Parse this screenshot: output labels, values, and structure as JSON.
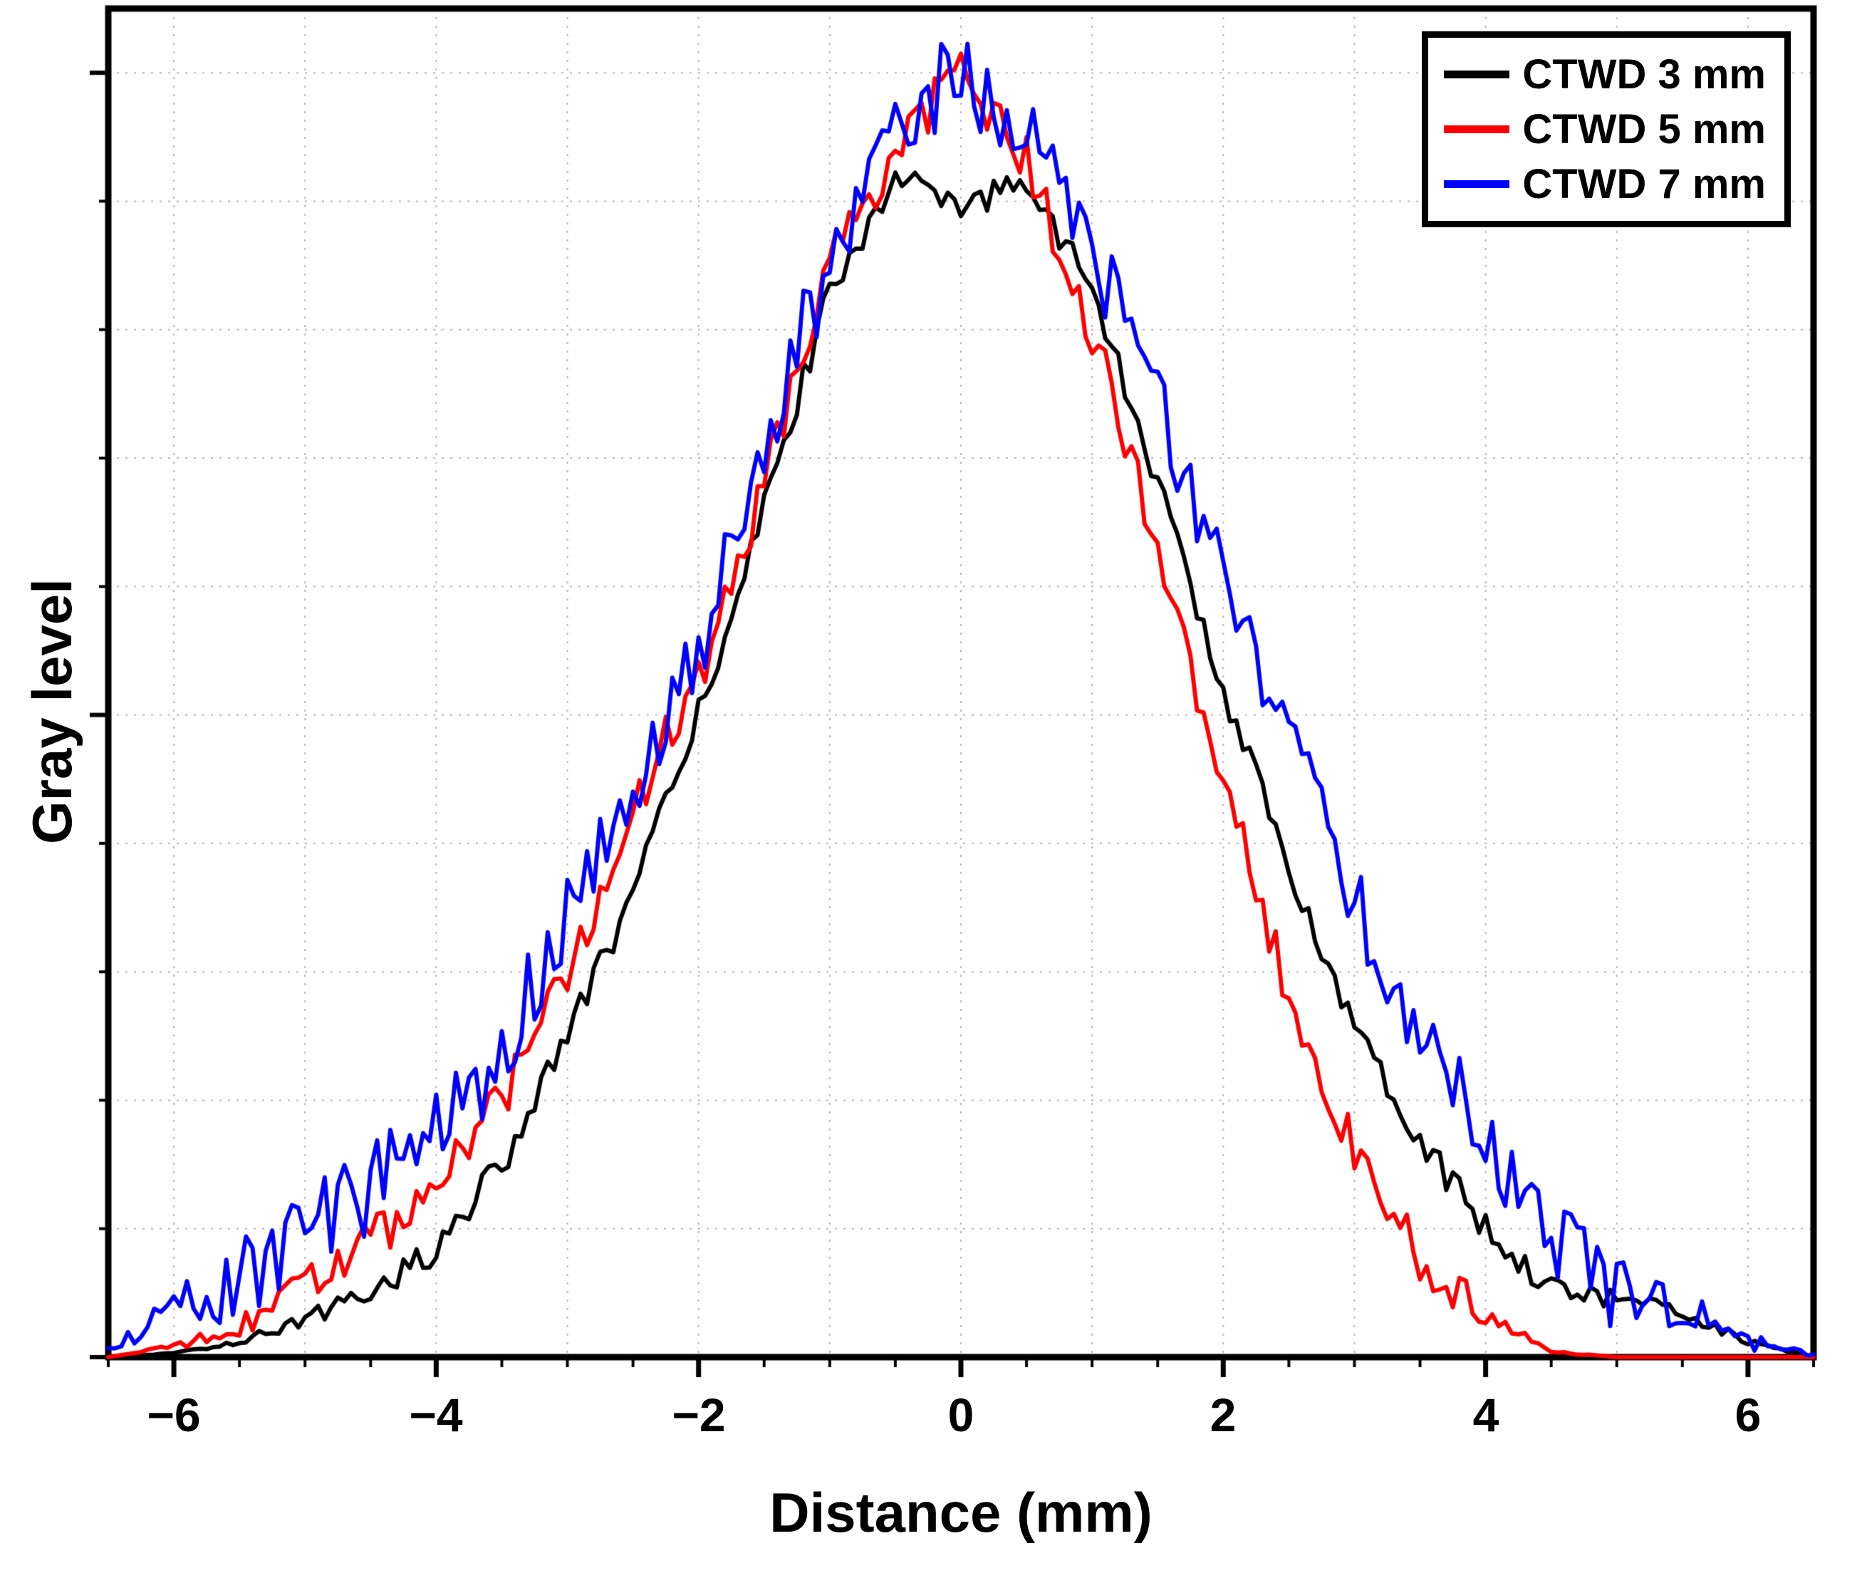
{
  "chart_data": {
    "type": "line",
    "title": "",
    "xlabel": "Distance (mm)",
    "ylabel": "Gray level",
    "xlim": [
      -6.5,
      6.5
    ],
    "ylim": [
      0,
      1.05
    ],
    "x_major_ticks": [
      -6,
      -4,
      -2,
      0,
      2,
      4,
      6
    ],
    "x_tick_labels": [
      "−6",
      "−4",
      "−2",
      "0",
      "2",
      "4",
      "6"
    ],
    "x_minor_step": 0.5,
    "grid": {
      "x_step": 1,
      "y_step": 0.1,
      "style": "dashed",
      "color": "#b5b5b5"
    },
    "legend_position": "top-right",
    "x": [
      -7,
      -6.5,
      -6,
      -5.5,
      -5,
      -4.5,
      -4,
      -3.5,
      -3,
      -2.5,
      -2,
      -1.5,
      -1,
      -0.5,
      0,
      0.5,
      1,
      1.5,
      2,
      2.5,
      3,
      3.5,
      4,
      4.5,
      5,
      5.5,
      6,
      6.5,
      7
    ],
    "series": [
      {
        "name": "CTWD 3 mm",
        "color": "#000000",
        "noise": 0.012,
        "values": [
          0,
          0,
          0.003,
          0.012,
          0.03,
          0.05,
          0.085,
          0.15,
          0.25,
          0.36,
          0.5,
          0.66,
          0.83,
          0.92,
          0.89,
          0.92,
          0.83,
          0.68,
          0.52,
          0.38,
          0.26,
          0.17,
          0.1,
          0.055,
          0.045,
          0.035,
          0.012,
          0,
          0
        ]
      },
      {
        "name": "CTWD 5 mm",
        "color": "#fe0000",
        "noise": 0.02,
        "values": [
          0,
          0,
          0.008,
          0.025,
          0.055,
          0.09,
          0.13,
          0.2,
          0.3,
          0.43,
          0.53,
          0.68,
          0.85,
          0.94,
          1.0,
          0.93,
          0.8,
          0.63,
          0.45,
          0.28,
          0.16,
          0.08,
          0.03,
          0.004,
          0,
          0,
          0,
          0,
          0
        ]
      },
      {
        "name": "CTWD 7 mm",
        "color": "#0000fe",
        "noise": 0.035,
        "values": [
          0,
          0.005,
          0.035,
          0.055,
          0.1,
          0.13,
          0.17,
          0.24,
          0.34,
          0.45,
          0.55,
          0.7,
          0.86,
          0.97,
          1.0,
          0.96,
          0.87,
          0.74,
          0.62,
          0.48,
          0.36,
          0.26,
          0.17,
          0.1,
          0.05,
          0.035,
          0.012,
          0.002,
          0
        ]
      }
    ]
  }
}
